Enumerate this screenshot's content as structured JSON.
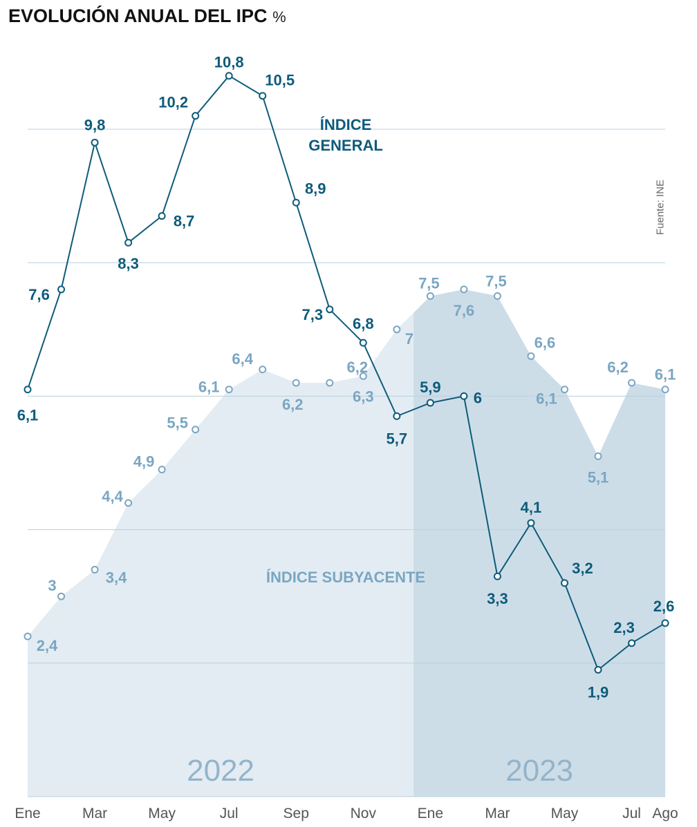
{
  "title": "EVOLUCIÓN ANUAL DEL IPC",
  "unit": "%",
  "source": "Fuente: INE",
  "colors": {
    "general": "#0d5b7b",
    "core": "#7aa6c2",
    "area_2022": "#e3ecf3",
    "area_2023": "#cddde8",
    "grid": "#b7cfdd",
    "year_label": "#93b4ca",
    "axis_text": "#555555"
  },
  "chart_data": {
    "type": "line",
    "title": "EVOLUCIÓN ANUAL DEL IPC",
    "ylabel": "%",
    "ylim": [
      0,
      12
    ],
    "grid_values": [
      2,
      4,
      6,
      8,
      10
    ],
    "grid": true,
    "x_tick_labels": [
      "Ene",
      "Mar",
      "May",
      "Jul",
      "Sep",
      "Nov",
      "Ene",
      "Mar",
      "May",
      "Jul",
      "Ago"
    ],
    "x_tick_index": [
      0,
      2,
      4,
      6,
      8,
      10,
      12,
      14,
      16,
      18,
      19
    ],
    "periods": [
      {
        "label": "2022",
        "start_index": 0,
        "end_index": 11.5
      },
      {
        "label": "2023",
        "start_index": 11.5,
        "end_index": 19
      }
    ],
    "series": [
      {
        "name": "ÍNDICE GENERAL",
        "values": [
          6.1,
          7.6,
          9.8,
          8.3,
          8.7,
          10.2,
          10.8,
          10.5,
          8.9,
          7.3,
          6.8,
          5.7,
          5.9,
          6,
          3.3,
          4.1,
          3.2,
          1.9,
          2.3,
          2.6
        ],
        "labels": [
          "6,1",
          "7,6",
          "9,8",
          "8,3",
          "8,7",
          "10,2",
          "10,8",
          "10,5",
          "8,9",
          "7,3",
          "6,8",
          "5,7",
          "5,9",
          "6",
          "3,3",
          "4,1",
          "3,2",
          "1,9",
          "2,3",
          "2,6"
        ]
      },
      {
        "name": "ÍNDICE SUBYACENTE",
        "values": [
          2.4,
          3,
          3.4,
          4.4,
          4.9,
          5.5,
          6.1,
          6.4,
          6.2,
          6.2,
          6.3,
          7,
          7.5,
          7.6,
          7.5,
          6.6,
          6.1,
          5.1,
          6.2,
          6.1
        ],
        "labels": [
          "2,4",
          "3",
          "3,4",
          "4,4",
          "4,9",
          "5,5",
          "6,1",
          "6,4",
          "6,2",
          "6,2",
          "6,3",
          "7",
          "7,5",
          "7,6",
          "7,5",
          "6,6",
          "6,1",
          "5,1",
          "6,2",
          "6,1"
        ]
      }
    ]
  }
}
